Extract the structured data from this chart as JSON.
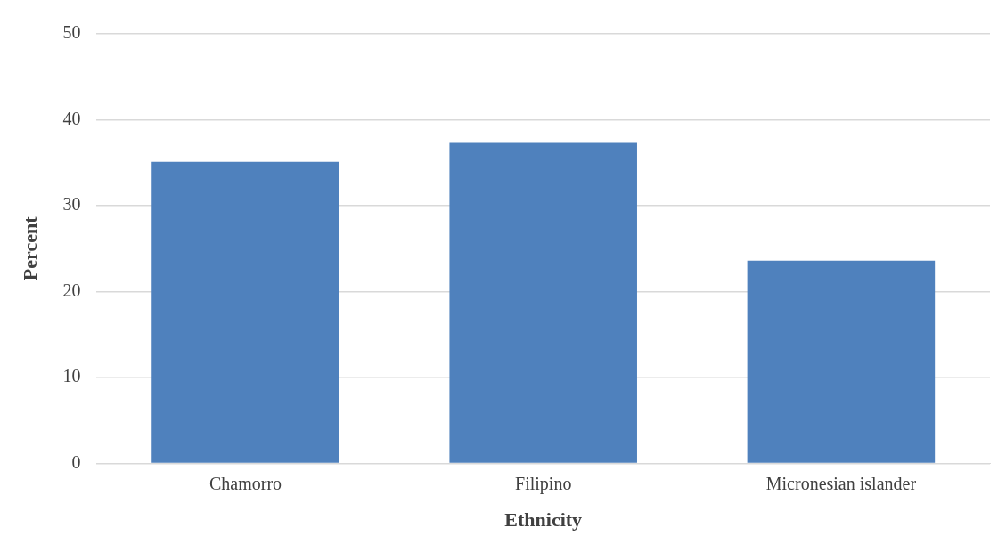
{
  "chart_data": {
    "type": "bar",
    "xlabel": "Ethnicity",
    "ylabel": "Percent",
    "categories": [
      "Chamorro",
      "Filipino",
      "Micronesian islander"
    ],
    "series": [
      {
        "color": "#4f81bd",
        "values": [
          35.1,
          37.3,
          23.6
        ]
      }
    ],
    "ylim": [
      0,
      50
    ],
    "yticks": [
      0,
      10,
      20,
      30,
      40,
      50
    ],
    "grid": "y",
    "legend": false
  }
}
